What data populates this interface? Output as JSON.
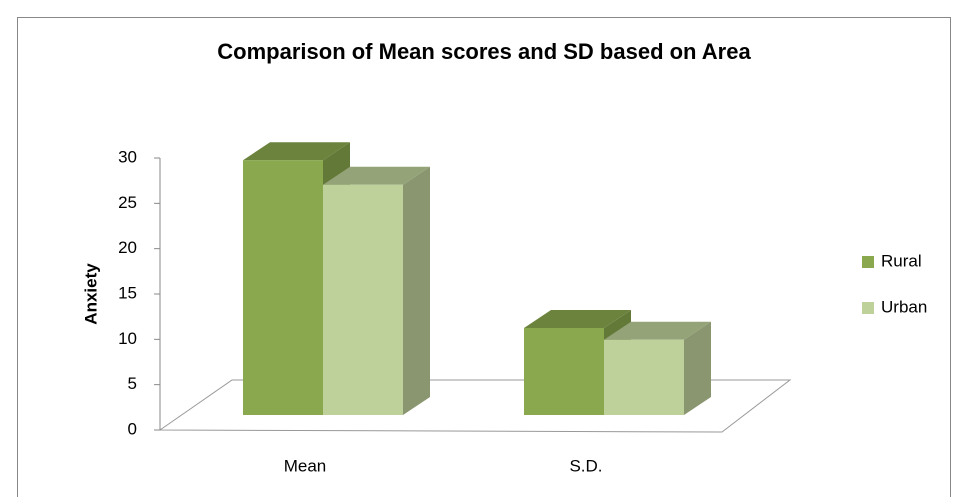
{
  "chart_data": {
    "type": "bar3d",
    "title": "Comparison of Mean scores and SD based on Area",
    "y_label": "Anxiety",
    "categories": [
      "Mean",
      "S.D."
    ],
    "series": [
      {
        "name": "Rural",
        "color": "#8aa84e",
        "values": [
          28.1,
          9.6
        ]
      },
      {
        "name": "Urban",
        "color": "#bfd19a",
        "values": [
          25.4,
          8.3
        ]
      }
    ],
    "ylim": [
      0,
      30
    ],
    "yticks": [
      0,
      5,
      10,
      15,
      20,
      25,
      30
    ],
    "legend": "right"
  }
}
